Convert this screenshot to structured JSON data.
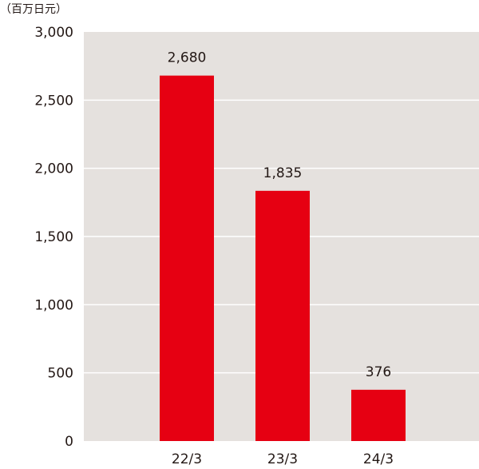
{
  "chart_data": {
    "type": "bar",
    "unit_label": "（百万日元）",
    "categories": [
      "22/3",
      "23/3",
      "24/3"
    ],
    "values": [
      2680,
      1835,
      376
    ],
    "value_labels": [
      "2,680",
      "1,835",
      "376"
    ],
    "y_ticks": [
      0,
      500,
      1000,
      1500,
      2000,
      2500,
      3000
    ],
    "y_tick_labels": [
      "0",
      "500",
      "1,000",
      "1,500",
      "2,000",
      "2,500",
      "3,000"
    ],
    "ylim": [
      0,
      3000
    ],
    "grid": true,
    "legend": "none",
    "colors": {
      "bar": "#e60012",
      "plot_background": "#e5e1de",
      "grid": "#ffffff",
      "text": "#231815"
    }
  }
}
